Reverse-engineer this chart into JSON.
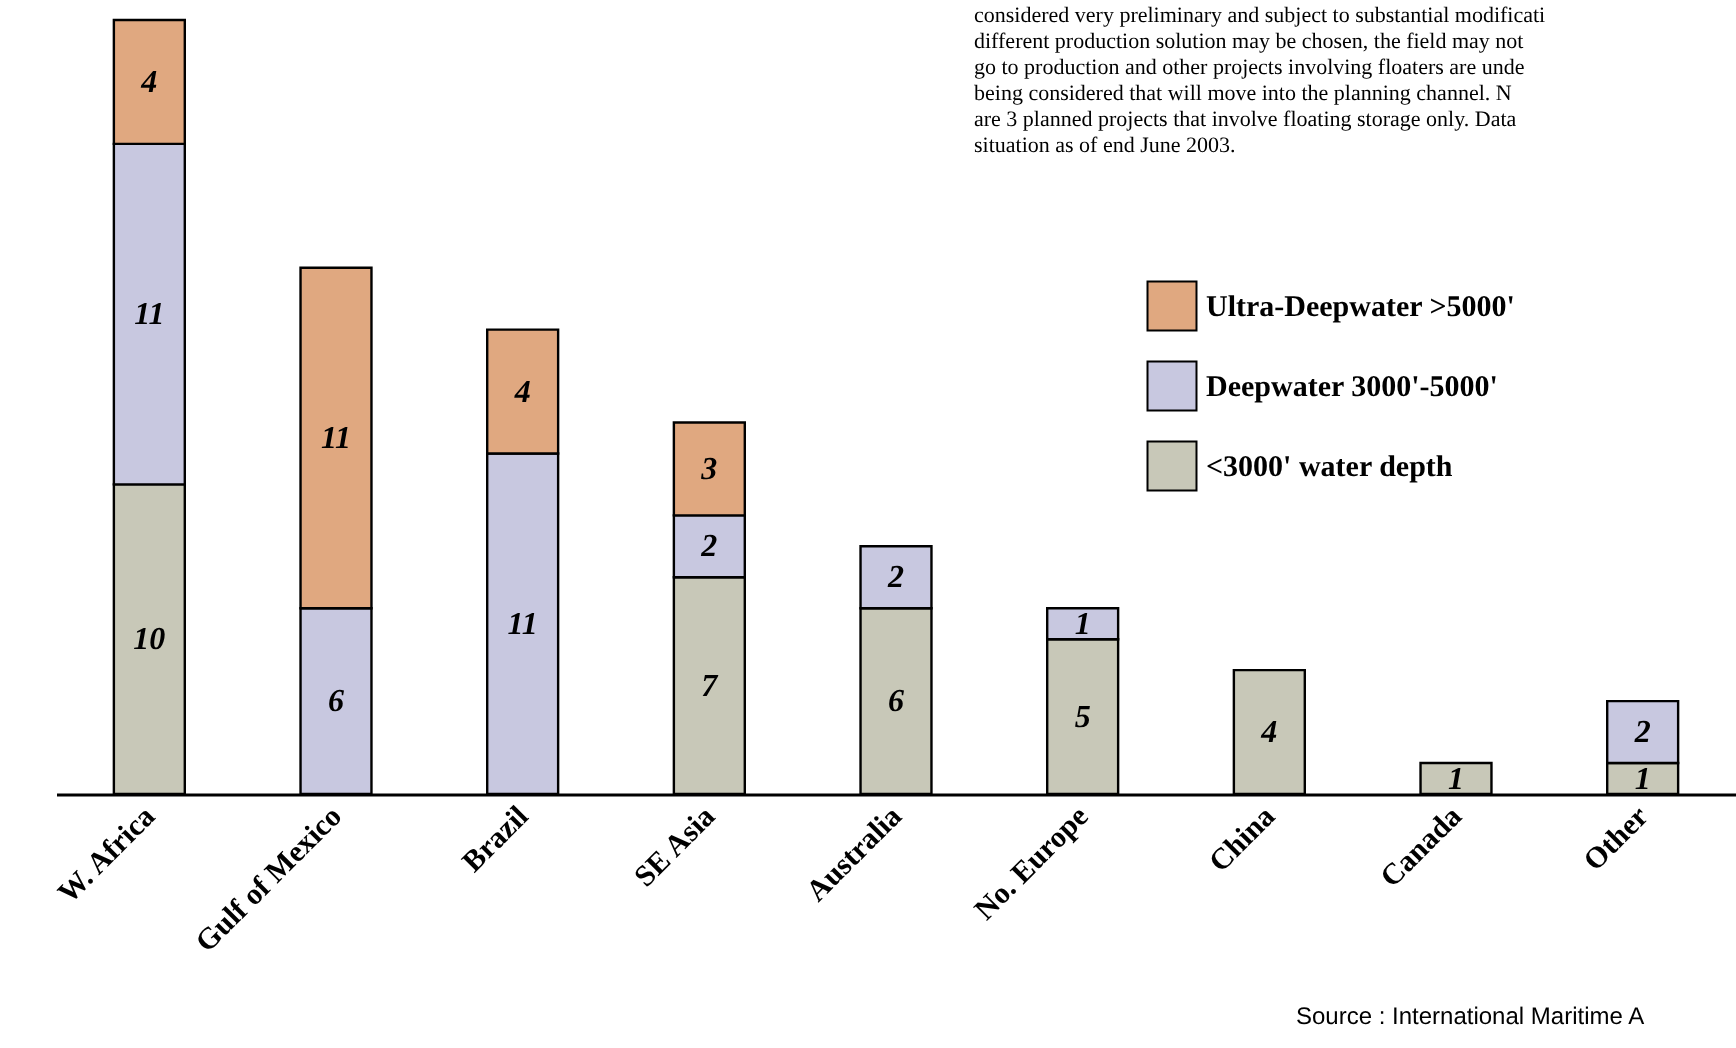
{
  "chart_data": {
    "type": "bar",
    "stacked": true,
    "data_labels": true,
    "legend": "top right",
    "ylim": [
      0,
      25
    ],
    "categories": [
      "W. Africa",
      "Gulf of Mexico",
      "Brazil",
      "SE Asia",
      "Australia",
      "No. Europe",
      "China",
      "Canada",
      "Other"
    ],
    "series": [
      {
        "name": "<3000' water depth",
        "color": "#c8c8b8",
        "values": [
          10,
          null,
          null,
          7,
          6,
          5,
          4,
          1,
          1
        ]
      },
      {
        "name": "Deepwater 3000'-5000'",
        "color": "#c8c8e0",
        "values": [
          11,
          6,
          11,
          2,
          2,
          1,
          null,
          null,
          2
        ]
      },
      {
        "name": "Ultra-Deepwater >5000'",
        "color": "#e0a880",
        "values": [
          4,
          11,
          4,
          3,
          null,
          null,
          null,
          null,
          null
        ]
      }
    ],
    "annotations": [
      "considered very preliminary and subject to substantial modificati\ndifferent production solution may be chosen, the field may not\ngo to production and other projects involving floaters are unde\nbeing considered that will move into the planning channel.  N\nare 3 planned projects that involve floating storage only.  Data\nsituation as of end June 2003.",
      "Source : International Maritime A"
    ]
  }
}
